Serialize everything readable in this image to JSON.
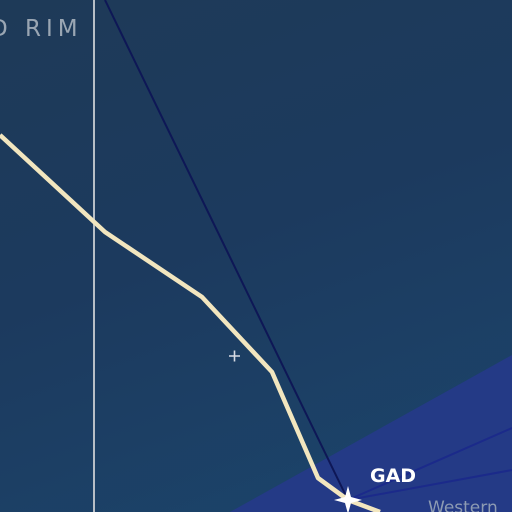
{
  "map": {
    "area_label": "D RIM",
    "fix_label": "GAD",
    "region_label": "Western",
    "colors": {
      "background": "#1c3a5a",
      "airspace_fill": "#243a86",
      "route_line": "#f2e6bf",
      "airway_line": "#0e1756",
      "boundary_line": "#b7bec6",
      "fix_marker": "#ffffff"
    },
    "icons": [
      "fix-star-icon",
      "crosshair-icon"
    ]
  }
}
